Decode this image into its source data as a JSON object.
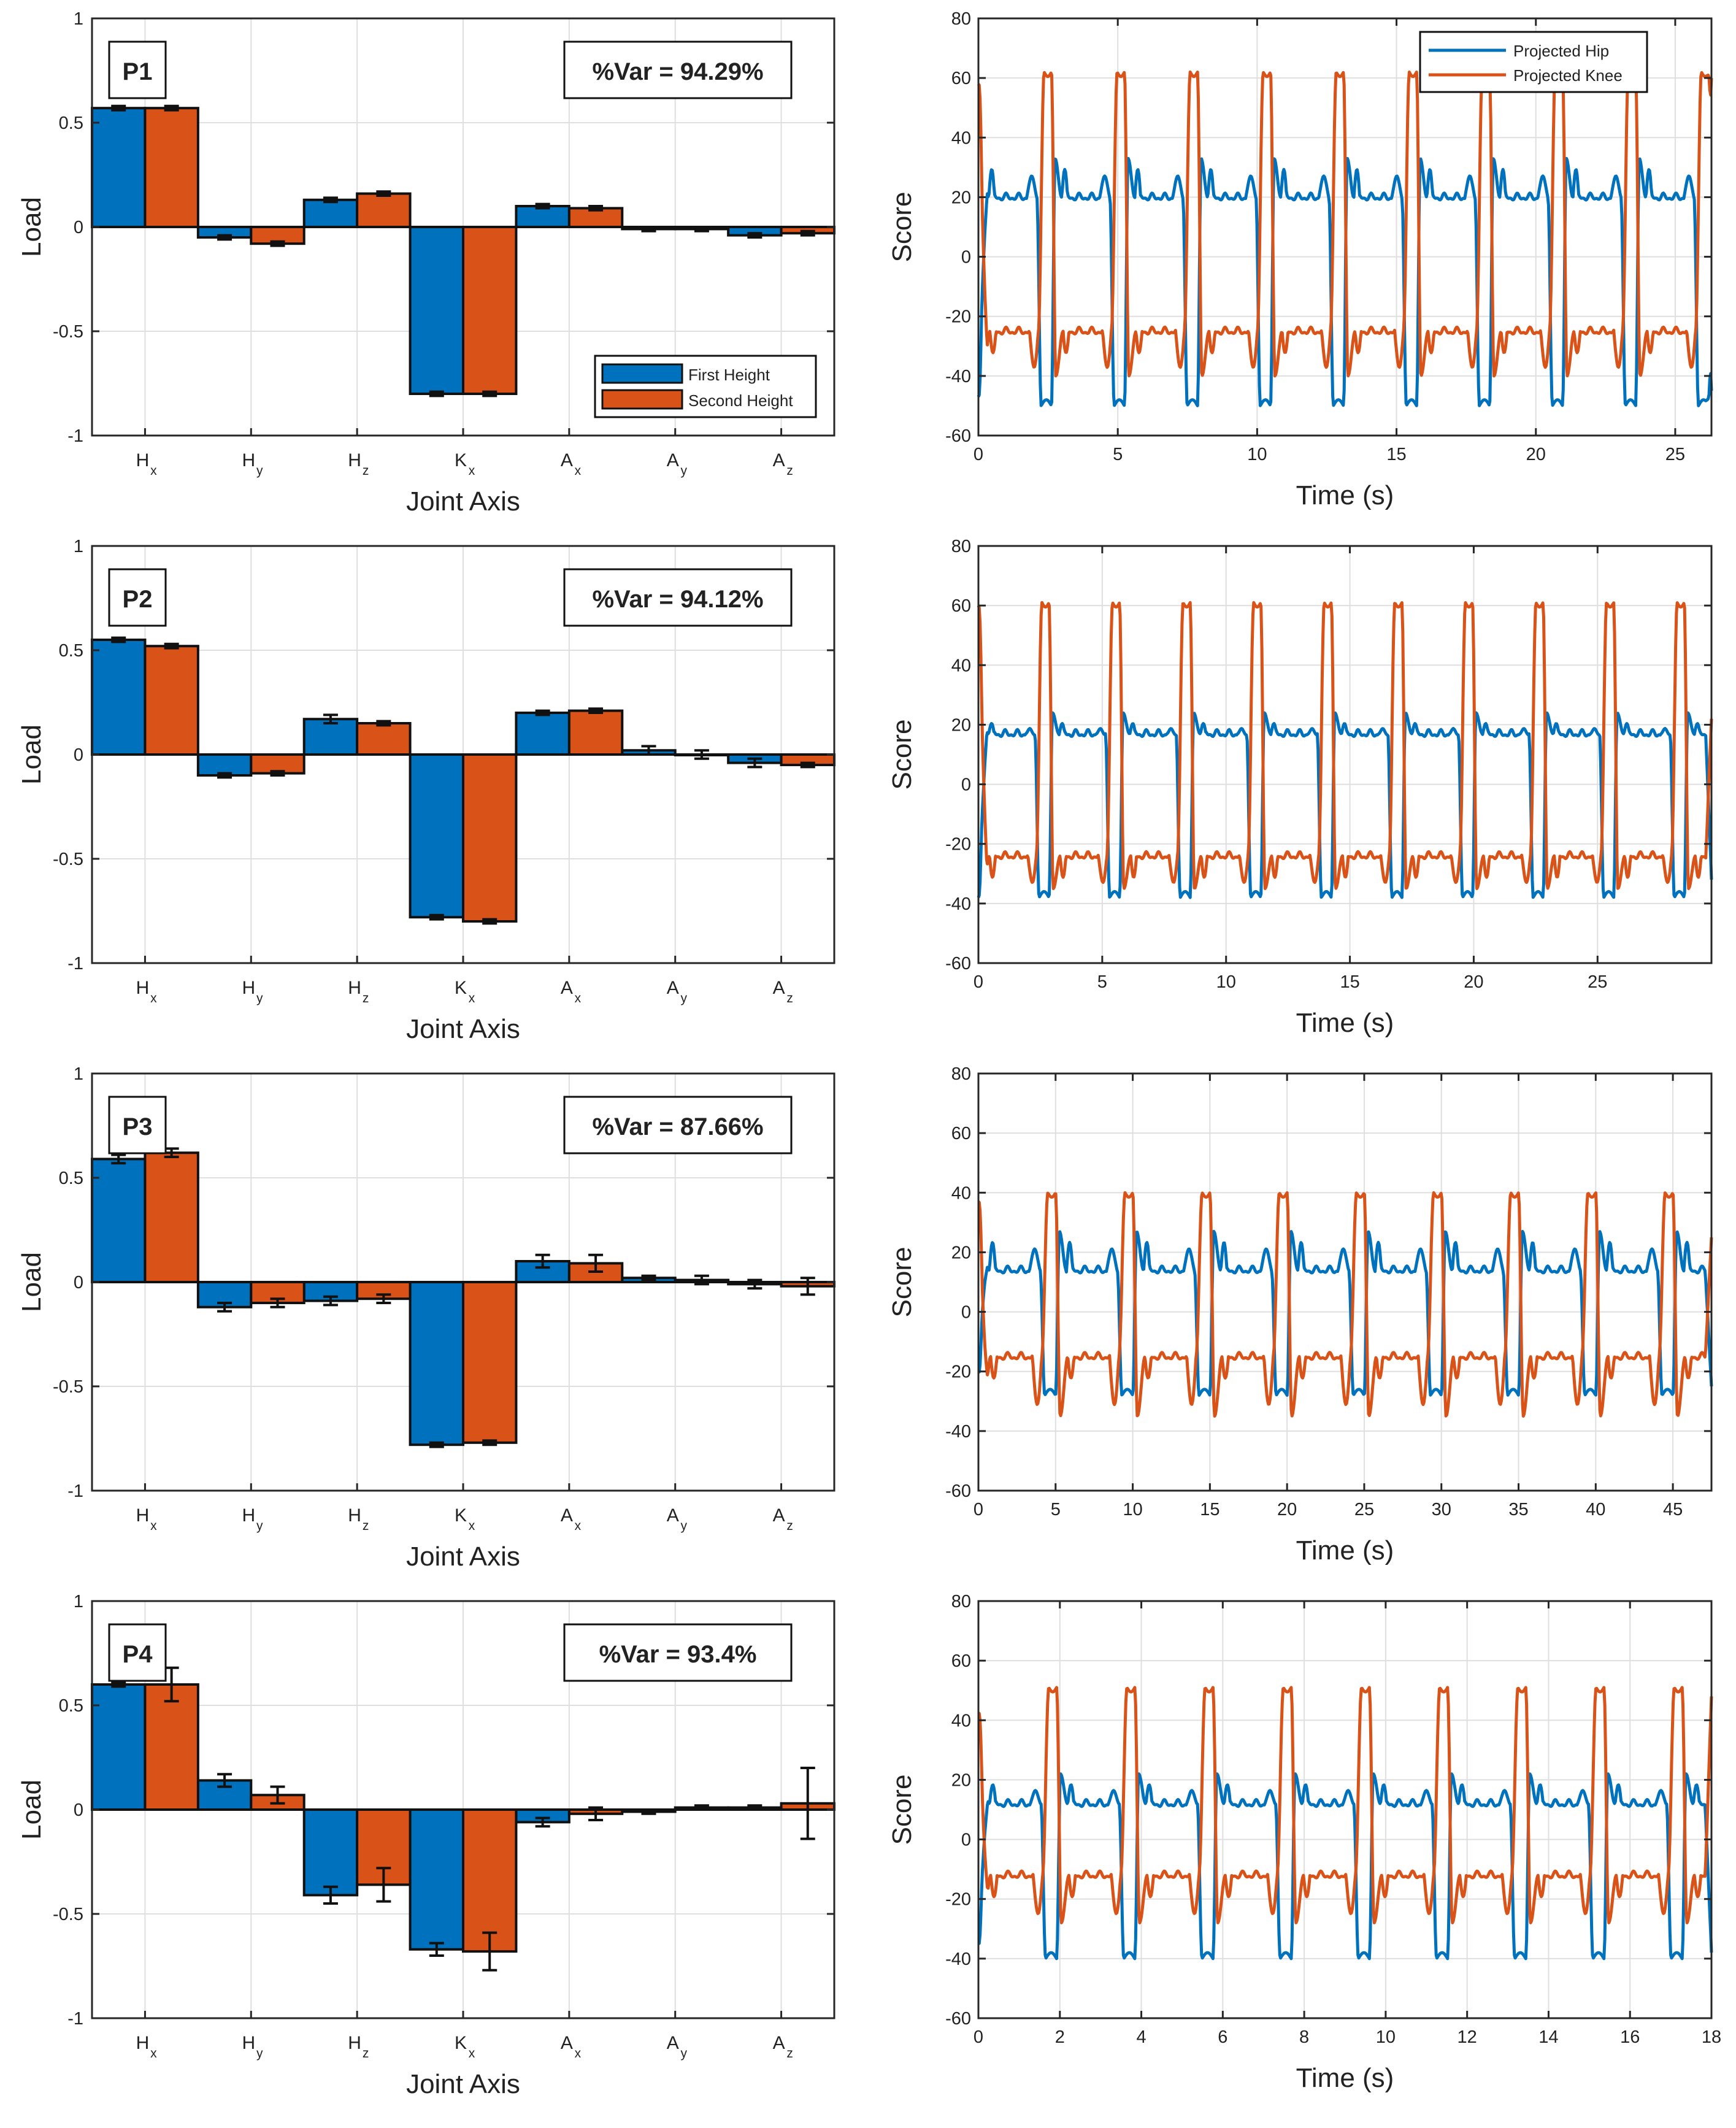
{
  "figure": {
    "legend_bar": {
      "first": "First Height",
      "second": "Second Height"
    },
    "legend_line": {
      "hip": "Projected Hip",
      "knee": "Projected Knee"
    }
  },
  "colors": {
    "blue": "#0072BD",
    "orange": "#D95319",
    "grid": "#dfdfdf"
  },
  "chart_data": [
    {
      "type": "bar",
      "panel": "P1",
      "title": "P1",
      "annotation": "%Var = 94.29%",
      "xlabel": "Joint Axis",
      "ylabel": "Load",
      "categories": [
        {
          "base": "H",
          "sub": "x"
        },
        {
          "base": "H",
          "sub": "y"
        },
        {
          "base": "H",
          "sub": "z"
        },
        {
          "base": "K",
          "sub": "x"
        },
        {
          "base": "A",
          "sub": "x"
        },
        {
          "base": "A",
          "sub": "y"
        },
        {
          "base": "A",
          "sub": "z"
        }
      ],
      "ylim": [
        -1,
        1
      ],
      "yticks": [
        -1,
        -0.5,
        0,
        0.5,
        1
      ],
      "ytick_labels": [
        "-1",
        "-0.5",
        "0",
        "0.5",
        "1"
      ],
      "series": [
        {
          "name": "First Height",
          "values": [
            0.57,
            -0.05,
            0.13,
            -0.8,
            0.1,
            -0.01,
            -0.04
          ],
          "errors": [
            0.01,
            0.01,
            0.01,
            0.01,
            0.01,
            0.01,
            0.01
          ]
        },
        {
          "name": "Second Height",
          "values": [
            0.57,
            -0.08,
            0.16,
            -0.8,
            0.09,
            -0.01,
            -0.03
          ],
          "errors": [
            0.01,
            0.01,
            0.01,
            0.01,
            0.01,
            0.01,
            0.01
          ]
        }
      ],
      "legend": true
    },
    {
      "type": "line",
      "panel": "P1",
      "xlabel": "Time (s)",
      "ylabel": "Score",
      "xlim": [
        0,
        26.3
      ],
      "xticks": [
        0,
        5,
        10,
        15,
        20,
        25
      ],
      "xtick_labels": [
        "0",
        "5",
        "10",
        "15",
        "20",
        "25"
      ],
      "ylim": [
        -60,
        80
      ],
      "yticks": [
        -60,
        -40,
        -20,
        0,
        20,
        40,
        60,
        80
      ],
      "ytick_labels": [
        "-60",
        "-40",
        "-20",
        "0",
        "20",
        "40",
        "60",
        "80"
      ],
      "period_s": 2.62,
      "cycles": 10,
      "series": [
        {
          "name": "Projected Hip",
          "peak": 33,
          "plateau": 20,
          "min": -50,
          "x_start": 0,
          "y_start": -47,
          "x_end": 26.3,
          "y_end": -45
        },
        {
          "name": "Projected Knee",
          "peak": 62,
          "plateau": -25,
          "min": -40,
          "x_start": 0,
          "y_start": 58,
          "x_end": 26.3,
          "y_end": 60
        }
      ],
      "legend": true
    },
    {
      "type": "bar",
      "panel": "P2",
      "title": "P2",
      "annotation": "%Var = 94.12%",
      "xlabel": "Joint Axis",
      "ylabel": "Load",
      "categories": [
        {
          "base": "H",
          "sub": "x"
        },
        {
          "base": "H",
          "sub": "y"
        },
        {
          "base": "H",
          "sub": "z"
        },
        {
          "base": "K",
          "sub": "x"
        },
        {
          "base": "A",
          "sub": "x"
        },
        {
          "base": "A",
          "sub": "y"
        },
        {
          "base": "A",
          "sub": "z"
        }
      ],
      "ylim": [
        -1,
        1
      ],
      "yticks": [
        -1,
        -0.5,
        0,
        0.5,
        1
      ],
      "ytick_labels": [
        "-1",
        "-0.5",
        "0",
        "0.5",
        "1"
      ],
      "series": [
        {
          "name": "First Height",
          "values": [
            0.55,
            -0.1,
            0.17,
            -0.78,
            0.2,
            0.02,
            -0.04
          ],
          "errors": [
            0.01,
            0.01,
            0.02,
            0.01,
            0.01,
            0.02,
            0.02
          ]
        },
        {
          "name": "Second Height",
          "values": [
            0.52,
            -0.09,
            0.15,
            -0.8,
            0.21,
            0.0,
            -0.05
          ],
          "errors": [
            0.01,
            0.01,
            0.01,
            0.01,
            0.01,
            0.02,
            0.01
          ]
        }
      ],
      "legend": false
    },
    {
      "type": "line",
      "panel": "P2",
      "xlabel": "Time (s)",
      "ylabel": "Score",
      "xlim": [
        0,
        29.6
      ],
      "xticks": [
        0,
        5,
        10,
        15,
        20,
        25
      ],
      "xtick_labels": [
        "0",
        "5",
        "10",
        "15",
        "20",
        "25"
      ],
      "ylim": [
        -60,
        80
      ],
      "yticks": [
        -60,
        -40,
        -20,
        0,
        20,
        40,
        60,
        80
      ],
      "ytick_labels": [
        "-60",
        "-40",
        "-20",
        "0",
        "20",
        "40",
        "60",
        "80"
      ],
      "period_s": 2.85,
      "cycles": 10,
      "series": [
        {
          "name": "Projected Hip",
          "peak": 24,
          "plateau": 17,
          "min": -38,
          "x_start": 0,
          "y_start": -38,
          "x_end": 29.6,
          "y_end": -32
        },
        {
          "name": "Projected Knee",
          "peak": 61,
          "plateau": -24,
          "min": -35,
          "x_start": 0,
          "y_start": 60,
          "x_end": 29.6,
          "y_end": 22
        }
      ],
      "legend": false
    },
    {
      "type": "bar",
      "panel": "P3",
      "title": "P3",
      "annotation": "%Var = 87.66%",
      "xlabel": "Joint Axis",
      "ylabel": "Load",
      "categories": [
        {
          "base": "H",
          "sub": "x"
        },
        {
          "base": "H",
          "sub": "y"
        },
        {
          "base": "H",
          "sub": "z"
        },
        {
          "base": "K",
          "sub": "x"
        },
        {
          "base": "A",
          "sub": "x"
        },
        {
          "base": "A",
          "sub": "y"
        },
        {
          "base": "A",
          "sub": "z"
        }
      ],
      "ylim": [
        -1,
        1
      ],
      "yticks": [
        -1,
        -0.5,
        0,
        0.5,
        1
      ],
      "ytick_labels": [
        "-1",
        "-0.5",
        "0",
        "0.5",
        "1"
      ],
      "series": [
        {
          "name": "First Height",
          "values": [
            0.59,
            -0.12,
            -0.09,
            -0.78,
            0.1,
            0.02,
            -0.01
          ],
          "errors": [
            0.02,
            0.02,
            0.02,
            0.01,
            0.03,
            0.01,
            0.02
          ]
        },
        {
          "name": "Second Height",
          "values": [
            0.62,
            -0.1,
            -0.08,
            -0.77,
            0.09,
            0.01,
            -0.02
          ],
          "errors": [
            0.02,
            0.02,
            0.02,
            0.01,
            0.04,
            0.02,
            0.04
          ]
        }
      ],
      "legend": false
    },
    {
      "type": "line",
      "panel": "P3",
      "xlabel": "Time (s)",
      "ylabel": "Score",
      "xlim": [
        0,
        47.5
      ],
      "xticks": [
        0,
        5,
        10,
        15,
        20,
        25,
        30,
        35,
        40,
        45
      ],
      "xtick_labels": [
        "0",
        "5",
        "10",
        "15",
        "20",
        "25",
        "30",
        "35",
        "40",
        "45"
      ],
      "ylim": [
        -60,
        80
      ],
      "yticks": [
        -60,
        -40,
        -20,
        0,
        20,
        40,
        60,
        80
      ],
      "ytick_labels": [
        "-60",
        "-40",
        "-20",
        "0",
        "20",
        "40",
        "60",
        "80"
      ],
      "period_s": 5.0,
      "cycles": 9,
      "series": [
        {
          "name": "Projected Hip",
          "peak": 27,
          "plateau": 14,
          "min": -28,
          "x_start": 0,
          "y_start": -20,
          "x_end": 47.5,
          "y_end": -25
        },
        {
          "name": "Projected Knee",
          "peak": 40,
          "plateau": -15,
          "min": -35,
          "x_start": 0,
          "y_start": 37,
          "x_end": 47.5,
          "y_end": 25
        }
      ],
      "legend": false
    },
    {
      "type": "bar",
      "panel": "P4",
      "title": "P4",
      "annotation": "%Var = 93.4%",
      "xlabel": "Joint Axis",
      "ylabel": "Load",
      "categories": [
        {
          "base": "H",
          "sub": "x"
        },
        {
          "base": "H",
          "sub": "y"
        },
        {
          "base": "H",
          "sub": "z"
        },
        {
          "base": "K",
          "sub": "x"
        },
        {
          "base": "A",
          "sub": "x"
        },
        {
          "base": "A",
          "sub": "y"
        },
        {
          "base": "A",
          "sub": "z"
        }
      ],
      "ylim": [
        -1,
        1
      ],
      "yticks": [
        -1,
        -0.5,
        0,
        0.5,
        1
      ],
      "ytick_labels": [
        "-1",
        "-0.5",
        "0",
        "0.5",
        "1"
      ],
      "series": [
        {
          "name": "First Height",
          "values": [
            0.6,
            0.14,
            -0.41,
            -0.67,
            -0.06,
            -0.01,
            0.01
          ],
          "errors": [
            0.01,
            0.03,
            0.04,
            0.03,
            0.02,
            0.01,
            0.01
          ]
        },
        {
          "name": "Second Height",
          "values": [
            0.6,
            0.07,
            -0.36,
            -0.68,
            -0.02,
            0.01,
            0.03
          ],
          "errors": [
            0.08,
            0.04,
            0.08,
            0.09,
            0.03,
            0.01,
            0.17
          ]
        }
      ],
      "legend": false
    },
    {
      "type": "line",
      "panel": "P4",
      "xlabel": "Time (s)",
      "ylabel": "Score",
      "xlim": [
        0,
        18
      ],
      "xticks": [
        0,
        2,
        4,
        6,
        8,
        10,
        12,
        14,
        16,
        18
      ],
      "xtick_labels": [
        "0",
        "2",
        "4",
        "6",
        "8",
        "10",
        "12",
        "14",
        "16",
        "18"
      ],
      "ylim": [
        -60,
        80
      ],
      "yticks": [
        -60,
        -40,
        -20,
        0,
        20,
        40,
        60,
        80
      ],
      "ytick_labels": [
        "-60",
        "-40",
        "-20",
        "0",
        "20",
        "40",
        "60",
        "80"
      ],
      "period_s": 1.92,
      "cycles": 9,
      "series": [
        {
          "name": "Projected Hip",
          "peak": 22,
          "plateau": 12,
          "min": -40,
          "x_start": 0,
          "y_start": -35,
          "x_end": 18,
          "y_end": -38
        },
        {
          "name": "Projected Knee",
          "peak": 51,
          "plateau": -12,
          "min": -28,
          "x_start": 0,
          "y_start": 42,
          "x_end": 18,
          "y_end": 48
        }
      ],
      "legend": false
    }
  ]
}
